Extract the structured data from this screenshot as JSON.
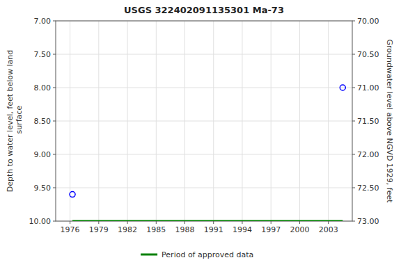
{
  "chart_data": {
    "type": "scatter",
    "title": "USGS 322402091135301 Ma-73",
    "y_label": "Depth to water level, feet below land\n surface",
    "y2_label": "Groundwater level above NGVD 1929, feet",
    "xlim": [
      1974.5,
      2005.5
    ],
    "xticks": [
      1976,
      1979,
      1982,
      1985,
      1988,
      1991,
      1994,
      1997,
      2000,
      2003
    ],
    "ylim": [
      10.0,
      7.0
    ],
    "yticks": [
      {
        "value": 7.0,
        "label": "7.00"
      },
      {
        "value": 7.5,
        "label": "7.50"
      },
      {
        "value": 8.0,
        "label": "8.00"
      },
      {
        "value": 8.5,
        "label": "8.50"
      },
      {
        "value": 9.0,
        "label": "9.00"
      },
      {
        "value": 9.5,
        "label": "9.50"
      },
      {
        "value": 10.0,
        "label": "10.00"
      }
    ],
    "y2lim": [
      73.0,
      70.0
    ],
    "y2ticks": [
      {
        "value": 73.0,
        "label": "73.00"
      },
      {
        "value": 72.5,
        "label": "72.50"
      },
      {
        "value": 72.0,
        "label": "72.00"
      },
      {
        "value": 71.5,
        "label": "71.50"
      },
      {
        "value": 71.0,
        "label": "71.00"
      },
      {
        "value": 70.5,
        "label": "70.50"
      },
      {
        "value": 70.0,
        "label": "70.00"
      }
    ],
    "grid": true,
    "legend": "bottom",
    "series": [
      {
        "type": "scatter",
        "color": "#0000ff",
        "marker": "circle",
        "x": [
          1976.25,
          2004.5
        ],
        "values": [
          9.6,
          8.0
        ]
      },
      {
        "name": "Period of approved data",
        "type": "line",
        "color": "#008000",
        "line_style": "solid",
        "x": [
          1976.25,
          2004.5
        ],
        "values": [
          10.0,
          10.0
        ]
      }
    ]
  }
}
